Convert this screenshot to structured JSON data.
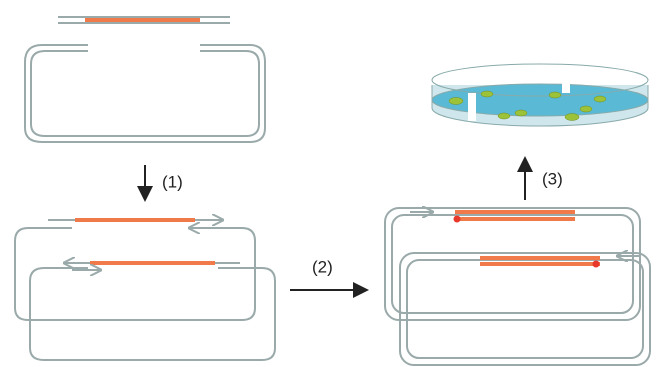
{
  "labels": [
    "(1)",
    "(2)",
    "(3)"
  ]
}
